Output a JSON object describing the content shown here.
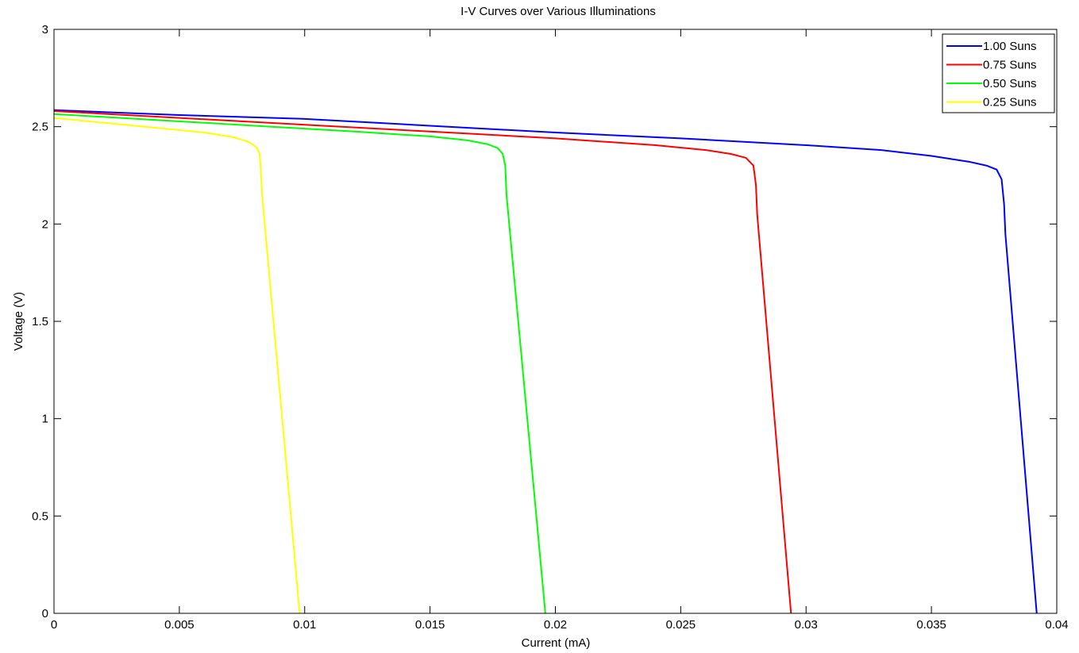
{
  "chart_data": {
    "type": "line",
    "title": "I-V Curves over Various Illuminations",
    "xlabel": "Current (mA)",
    "ylabel": "Voltage (V)",
    "xlim": [
      0,
      0.04
    ],
    "ylim": [
      0,
      3
    ],
    "x_ticks": [
      0,
      0.005,
      0.01,
      0.015,
      0.02,
      0.025,
      0.03,
      0.035,
      0.04
    ],
    "x_tick_labels": [
      "0",
      "0.005",
      "0.01",
      "0.015",
      "0.02",
      "0.025",
      "0.03",
      "0.035",
      "0.04"
    ],
    "y_ticks": [
      0,
      0.5,
      1,
      1.5,
      2,
      2.5,
      3
    ],
    "y_tick_labels": [
      "0",
      "0.5",
      "1",
      "1.5",
      "2",
      "2.5",
      "3"
    ],
    "grid": false,
    "legend_position": "top-right",
    "series": [
      {
        "name": "1.00 Suns",
        "color": "#0000ff",
        "points": [
          [
            0,
            2.585
          ],
          [
            0.005,
            2.56
          ],
          [
            0.01,
            2.54
          ],
          [
            0.015,
            2.505
          ],
          [
            0.02,
            2.47
          ],
          [
            0.025,
            2.44
          ],
          [
            0.03,
            2.405
          ],
          [
            0.033,
            2.38
          ],
          [
            0.035,
            2.35
          ],
          [
            0.0365,
            2.32
          ],
          [
            0.0372,
            2.3
          ],
          [
            0.0376,
            2.28
          ],
          [
            0.0378,
            2.23
          ],
          [
            0.0379,
            2.1
          ],
          [
            0.03795,
            1.95
          ],
          [
            0.0392,
            0.0
          ]
        ]
      },
      {
        "name": "0.75 Suns",
        "color": "#ff0000",
        "points": [
          [
            0,
            2.58
          ],
          [
            0.005,
            2.545
          ],
          [
            0.01,
            2.51
          ],
          [
            0.015,
            2.475
          ],
          [
            0.02,
            2.44
          ],
          [
            0.024,
            2.405
          ],
          [
            0.026,
            2.38
          ],
          [
            0.027,
            2.36
          ],
          [
            0.0276,
            2.34
          ],
          [
            0.0279,
            2.3
          ],
          [
            0.028,
            2.2
          ],
          [
            0.02805,
            2.05
          ],
          [
            0.0294,
            0.0
          ]
        ]
      },
      {
        "name": "0.50 Suns",
        "color": "#00ff00",
        "points": [
          [
            0,
            2.565
          ],
          [
            0.004,
            2.535
          ],
          [
            0.008,
            2.505
          ],
          [
            0.012,
            2.475
          ],
          [
            0.015,
            2.45
          ],
          [
            0.0165,
            2.43
          ],
          [
            0.0173,
            2.41
          ],
          [
            0.0177,
            2.39
          ],
          [
            0.0179,
            2.36
          ],
          [
            0.018,
            2.3
          ],
          [
            0.01805,
            2.15
          ],
          [
            0.0196,
            0.0
          ]
        ]
      },
      {
        "name": "0.25 Suns",
        "color": "#ffff00",
        "points": [
          [
            0,
            2.545
          ],
          [
            0.002,
            2.52
          ],
          [
            0.004,
            2.495
          ],
          [
            0.006,
            2.47
          ],
          [
            0.0072,
            2.445
          ],
          [
            0.0078,
            2.42
          ],
          [
            0.0081,
            2.39
          ],
          [
            0.0082,
            2.36
          ],
          [
            0.00825,
            2.28
          ],
          [
            0.0083,
            2.15
          ],
          [
            0.0098,
            0.0
          ]
        ]
      }
    ]
  }
}
